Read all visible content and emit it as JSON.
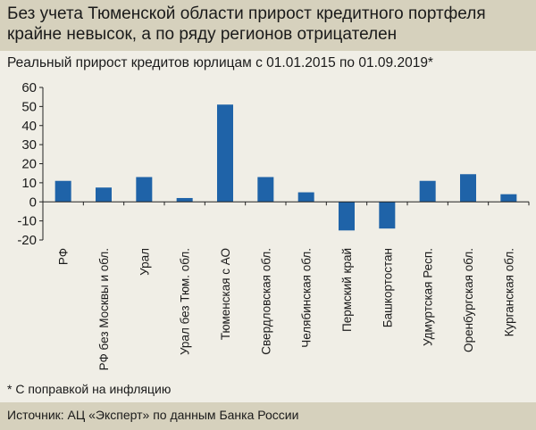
{
  "header": {
    "title": "Без учета Тюменской области прирост кредитного портфеля крайне невысок, а по ряду регионов отрицателен"
  },
  "chart_data": {
    "type": "bar",
    "title": "Реальный прирост кредитов юрлицам с 01.01.2015 по 01.09.2019*",
    "xlabel": "",
    "ylabel": "",
    "ylim": [
      -20,
      60
    ],
    "yticks": [
      60,
      50,
      40,
      30,
      20,
      10,
      0,
      -10,
      -20
    ],
    "grid": false,
    "bar_color": "#1f63a8",
    "categories": [
      "РФ",
      "РФ без Москвы и обл.",
      "Урал",
      "Урал без Тюм. обл.",
      "Тюменская с АО",
      "Свердловская обл.",
      "Челябинская обл.",
      "Пермский край",
      "Башкортостан",
      "Удмуртская Респ.",
      "Оренбургская обл.",
      "Курганская обл."
    ],
    "values": [
      11,
      7.5,
      13,
      2,
      51,
      13,
      5,
      -15,
      -14,
      11,
      14.5,
      4
    ]
  },
  "footnote": "* С поправкой на инфляцию",
  "source": "Источник: АЦ «Эксперт» по данным Банка России"
}
